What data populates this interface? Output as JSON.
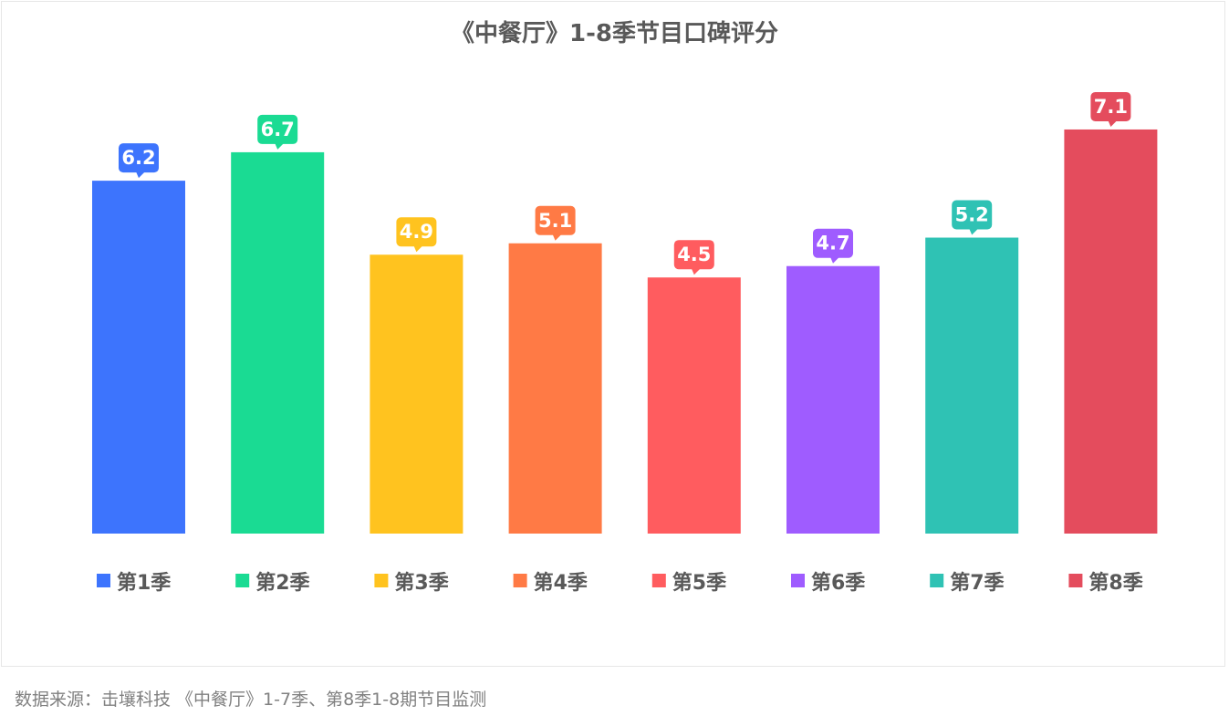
{
  "source": "数据来源：击壤科技 《中餐厅》1-7季、第8季1-8期节目监测",
  "chart_data": {
    "type": "bar",
    "title": "《中餐厅》1-8季节目口碑评分",
    "categories": [
      "第1季",
      "第2季",
      "第3季",
      "第4季",
      "第5季",
      "第6季",
      "第7季",
      "第8季"
    ],
    "values": [
      6.2,
      6.7,
      4.9,
      5.1,
      4.5,
      4.7,
      5.2,
      7.1
    ],
    "colors": [
      "#3d74fd",
      "#1adb93",
      "#ffc31f",
      "#ff7a45",
      "#ff5c5f",
      "#9f5cff",
      "#2fc2b4",
      "#e44c5d"
    ],
    "ylim": [
      0,
      8
    ],
    "grid": false,
    "legend": "bottom",
    "xlabel": "",
    "ylabel": ""
  }
}
